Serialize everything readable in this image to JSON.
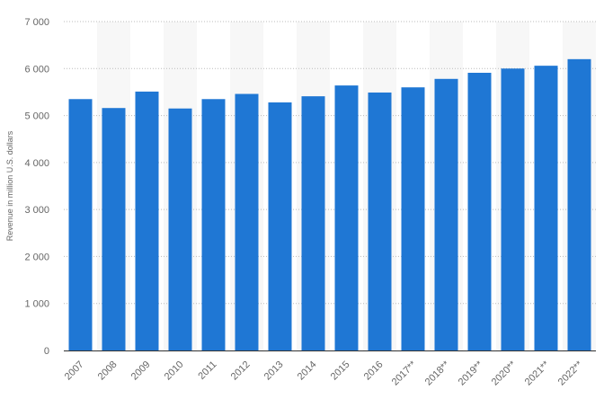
{
  "chart_data": {
    "type": "bar",
    "categories": [
      "2007",
      "2008",
      "2009",
      "2010",
      "2011",
      "2012",
      "2013",
      "2014",
      "2015",
      "2016",
      "2017**",
      "2018**",
      "2019**",
      "2020**",
      "2021**",
      "2022**"
    ],
    "series": [
      {
        "values": [
          5350,
          5160,
          5510,
          5150,
          5350,
          5460,
          5280,
          5410,
          5640,
          5490,
          5600,
          5780,
          5910,
          6000,
          6060,
          6200
        ],
        "color": "#1f77d4"
      }
    ],
    "xlabel": "",
    "ylabel": "Revenue in million U.S. dollars",
    "ylim": [
      0,
      7000
    ],
    "yticks": [
      0,
      1000,
      2000,
      3000,
      4000,
      5000,
      6000,
      7000
    ],
    "ytick_labels": [
      "0",
      "1 000",
      "2 000",
      "3 000",
      "4 000",
      "5 000",
      "6 000",
      "7 000"
    ],
    "grid": true,
    "grid_style": "dotted",
    "alternating_bands": true,
    "band_color": "#f7f7f7",
    "axis_color": "#333333"
  }
}
